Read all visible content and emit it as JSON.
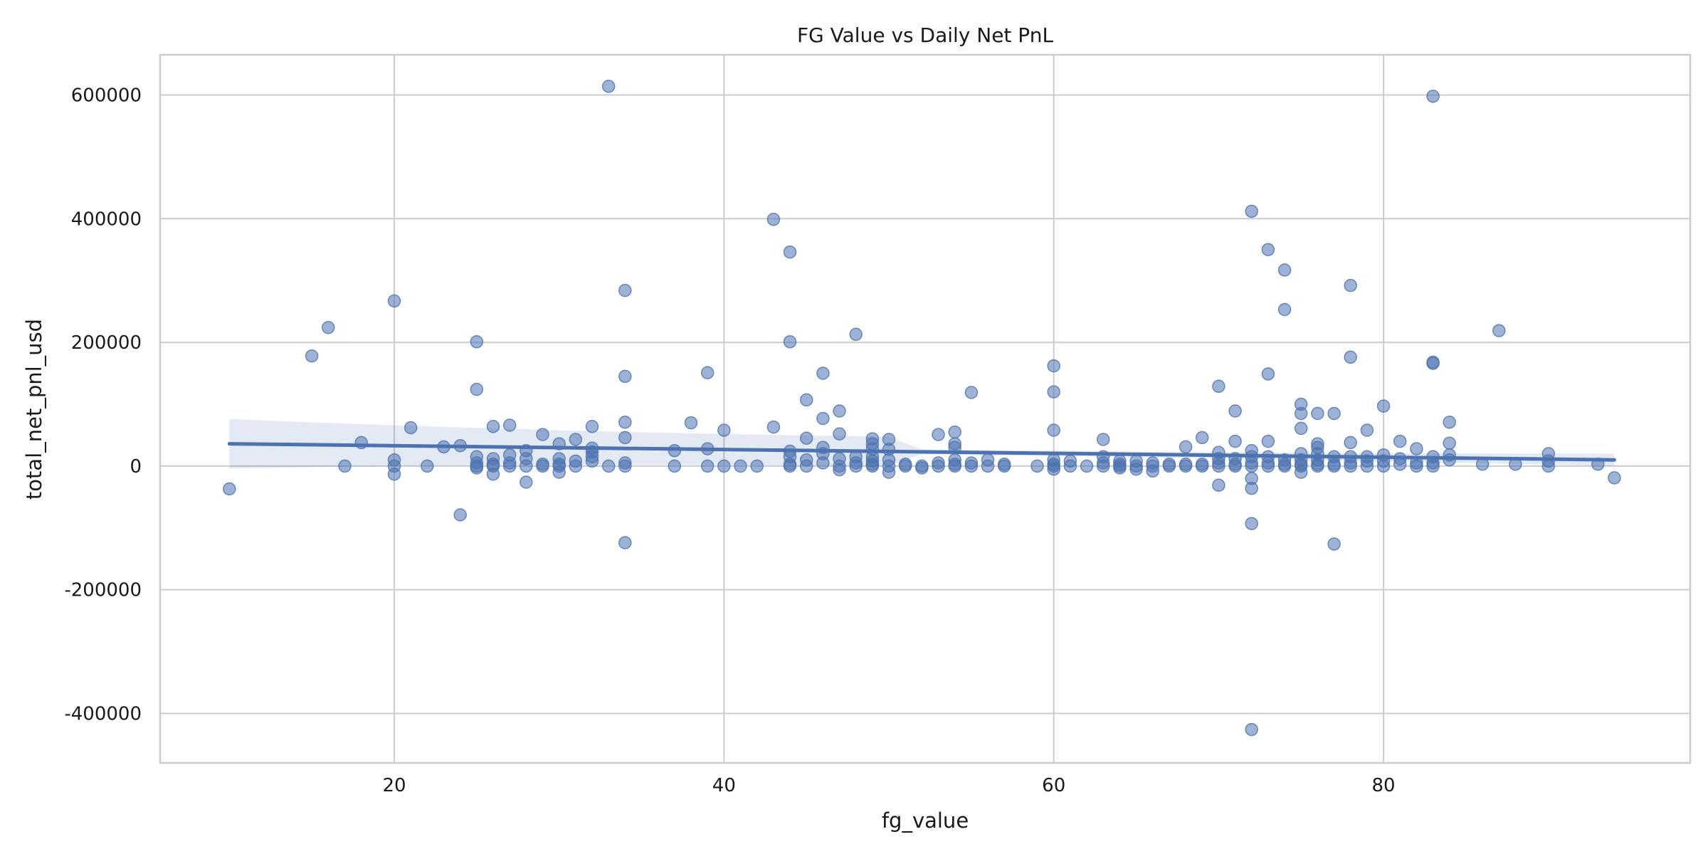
{
  "chart_data": {
    "type": "scatter",
    "title": "FG Value vs Daily Net PnL",
    "xlabel": "fg_value",
    "ylabel": "total_net_pnl_usd",
    "xlim": [
      5.8,
      98.6
    ],
    "ylim": [
      -480000,
      665000
    ],
    "x_ticks": [
      20,
      40,
      60,
      80
    ],
    "y_ticks": [
      -400000,
      -200000,
      0,
      200000,
      400000,
      600000
    ],
    "grid": true,
    "regression": {
      "x": [
        10,
        94
      ],
      "y": [
        36000,
        10000
      ],
      "ci_half_width_ends": [
        20000,
        10000
      ],
      "ci_half_width_mid": 4000
    },
    "points": [
      [
        10,
        -37000
      ],
      [
        15,
        178000
      ],
      [
        16,
        224000
      ],
      [
        17,
        0
      ],
      [
        18,
        38000
      ],
      [
        20,
        267000
      ],
      [
        20,
        10000
      ],
      [
        20,
        -13000
      ],
      [
        20,
        0
      ],
      [
        21,
        62000
      ],
      [
        22,
        0
      ],
      [
        23,
        31000
      ],
      [
        24,
        33000
      ],
      [
        24,
        -79000
      ],
      [
        25,
        201000
      ],
      [
        25,
        124000
      ],
      [
        25,
        15000
      ],
      [
        25,
        5000
      ],
      [
        25,
        0
      ],
      [
        25,
        -3000
      ],
      [
        26,
        64000
      ],
      [
        26,
        12000
      ],
      [
        26,
        3000
      ],
      [
        26,
        0
      ],
      [
        26,
        -13000
      ],
      [
        27,
        66000
      ],
      [
        27,
        18000
      ],
      [
        27,
        5000
      ],
      [
        27,
        0
      ],
      [
        28,
        25000
      ],
      [
        28,
        12000
      ],
      [
        28,
        0
      ],
      [
        28,
        -26000
      ],
      [
        29,
        51000
      ],
      [
        29,
        3000
      ],
      [
        29,
        0
      ],
      [
        30,
        36000
      ],
      [
        30,
        12000
      ],
      [
        30,
        3000
      ],
      [
        30,
        0
      ],
      [
        30,
        -10000
      ],
      [
        31,
        43000
      ],
      [
        31,
        8000
      ],
      [
        31,
        0
      ],
      [
        32,
        64000
      ],
      [
        32,
        29000
      ],
      [
        32,
        23000
      ],
      [
        32,
        15000
      ],
      [
        32,
        8000
      ],
      [
        33,
        614000
      ],
      [
        33,
        0
      ],
      [
        34,
        284000
      ],
      [
        34,
        145000
      ],
      [
        34,
        71000
      ],
      [
        34,
        46000
      ],
      [
        34,
        5000
      ],
      [
        34,
        0
      ],
      [
        34,
        -124000
      ],
      [
        37,
        25000
      ],
      [
        37,
        0
      ],
      [
        38,
        70000
      ],
      [
        39,
        151000
      ],
      [
        39,
        28000
      ],
      [
        39,
        0
      ],
      [
        40,
        58000
      ],
      [
        40,
        0
      ],
      [
        41,
        0
      ],
      [
        42,
        0
      ],
      [
        43,
        399000
      ],
      [
        43,
        63000
      ],
      [
        44,
        346000
      ],
      [
        44,
        201000
      ],
      [
        44,
        24000
      ],
      [
        44,
        15000
      ],
      [
        44,
        3000
      ],
      [
        44,
        0
      ],
      [
        45,
        107000
      ],
      [
        45,
        45000
      ],
      [
        45,
        10000
      ],
      [
        45,
        0
      ],
      [
        46,
        150000
      ],
      [
        46,
        77000
      ],
      [
        46,
        30000
      ],
      [
        46,
        20000
      ],
      [
        46,
        5000
      ],
      [
        47,
        89000
      ],
      [
        47,
        52000
      ],
      [
        47,
        12000
      ],
      [
        47,
        0
      ],
      [
        47,
        -6000
      ],
      [
        48,
        213000
      ],
      [
        48,
        15000
      ],
      [
        48,
        5000
      ],
      [
        48,
        0
      ],
      [
        49,
        44000
      ],
      [
        49,
        36000
      ],
      [
        49,
        28000
      ],
      [
        49,
        15000
      ],
      [
        49,
        8000
      ],
      [
        49,
        3000
      ],
      [
        49,
        0
      ],
      [
        50,
        43000
      ],
      [
        50,
        27000
      ],
      [
        50,
        10000
      ],
      [
        50,
        0
      ],
      [
        50,
        -10000
      ],
      [
        51,
        3000
      ],
      [
        51,
        0
      ],
      [
        52,
        0
      ],
      [
        52,
        -3000
      ],
      [
        53,
        51000
      ],
      [
        53,
        5000
      ],
      [
        53,
        0
      ],
      [
        54,
        55000
      ],
      [
        54,
        36000
      ],
      [
        54,
        30000
      ],
      [
        54,
        10000
      ],
      [
        54,
        3000
      ],
      [
        54,
        0
      ],
      [
        55,
        119000
      ],
      [
        55,
        5000
      ],
      [
        55,
        0
      ],
      [
        56,
        10000
      ],
      [
        56,
        0
      ],
      [
        57,
        3000
      ],
      [
        57,
        0
      ],
      [
        59,
        0
      ],
      [
        60,
        162000
      ],
      [
        60,
        120000
      ],
      [
        60,
        58000
      ],
      [
        60,
        10000
      ],
      [
        60,
        3000
      ],
      [
        60,
        0
      ],
      [
        60,
        -5000
      ],
      [
        61,
        8000
      ],
      [
        61,
        0
      ],
      [
        62,
        0
      ],
      [
        63,
        43000
      ],
      [
        63,
        15000
      ],
      [
        63,
        5000
      ],
      [
        63,
        0
      ],
      [
        64,
        8000
      ],
      [
        64,
        3000
      ],
      [
        64,
        0
      ],
      [
        64,
        -3000
      ],
      [
        65,
        8000
      ],
      [
        65,
        0
      ],
      [
        65,
        -5000
      ],
      [
        66,
        5000
      ],
      [
        66,
        0
      ],
      [
        66,
        -8000
      ],
      [
        67,
        3000
      ],
      [
        67,
        0
      ],
      [
        68,
        31000
      ],
      [
        68,
        3000
      ],
      [
        68,
        0
      ],
      [
        69,
        46000
      ],
      [
        69,
        3000
      ],
      [
        69,
        0
      ],
      [
        70,
        129000
      ],
      [
        70,
        22000
      ],
      [
        70,
        12000
      ],
      [
        70,
        5000
      ],
      [
        70,
        0
      ],
      [
        70,
        -31000
      ],
      [
        71,
        89000
      ],
      [
        71,
        40000
      ],
      [
        71,
        12000
      ],
      [
        71,
        3000
      ],
      [
        71,
        0
      ],
      [
        72,
        412000
      ],
      [
        72,
        25000
      ],
      [
        72,
        15000
      ],
      [
        72,
        5000
      ],
      [
        72,
        0
      ],
      [
        72,
        -20000
      ],
      [
        72,
        -36000
      ],
      [
        72,
        -93000
      ],
      [
        72,
        -426000
      ],
      [
        73,
        350000
      ],
      [
        73,
        149000
      ],
      [
        73,
        40000
      ],
      [
        73,
        15000
      ],
      [
        73,
        5000
      ],
      [
        73,
        0
      ],
      [
        74,
        317000
      ],
      [
        74,
        253000
      ],
      [
        74,
        10000
      ],
      [
        74,
        3000
      ],
      [
        74,
        0
      ],
      [
        75,
        100000
      ],
      [
        75,
        85000
      ],
      [
        75,
        61000
      ],
      [
        75,
        20000
      ],
      [
        75,
        10000
      ],
      [
        75,
        3000
      ],
      [
        75,
        0
      ],
      [
        75,
        -10000
      ],
      [
        76,
        85000
      ],
      [
        76,
        36000
      ],
      [
        76,
        30000
      ],
      [
        76,
        20000
      ],
      [
        76,
        10000
      ],
      [
        76,
        3000
      ],
      [
        76,
        0
      ],
      [
        77,
        85000
      ],
      [
        77,
        15000
      ],
      [
        77,
        3000
      ],
      [
        77,
        0
      ],
      [
        77,
        -126000
      ],
      [
        78,
        292000
      ],
      [
        78,
        176000
      ],
      [
        78,
        38000
      ],
      [
        78,
        15000
      ],
      [
        78,
        5000
      ],
      [
        78,
        0
      ],
      [
        79,
        58000
      ],
      [
        79,
        15000
      ],
      [
        79,
        8000
      ],
      [
        79,
        0
      ],
      [
        80,
        97000
      ],
      [
        80,
        18000
      ],
      [
        80,
        8000
      ],
      [
        80,
        0
      ],
      [
        81,
        40000
      ],
      [
        81,
        12000
      ],
      [
        81,
        3000
      ],
      [
        82,
        28000
      ],
      [
        82,
        5000
      ],
      [
        82,
        0
      ],
      [
        83,
        598000
      ],
      [
        83,
        168000
      ],
      [
        83,
        166000
      ],
      [
        83,
        15000
      ],
      [
        83,
        5000
      ],
      [
        83,
        0
      ],
      [
        84,
        71000
      ],
      [
        84,
        37000
      ],
      [
        84,
        18000
      ],
      [
        84,
        10000
      ],
      [
        86,
        3000
      ],
      [
        87,
        219000
      ],
      [
        88,
        3000
      ],
      [
        90,
        20000
      ],
      [
        90,
        8000
      ],
      [
        90,
        0
      ],
      [
        93,
        3000
      ],
      [
        94,
        -19000
      ]
    ]
  }
}
